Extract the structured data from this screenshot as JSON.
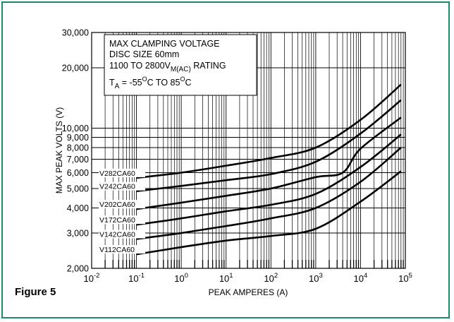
{
  "figure_label": "Figure 5",
  "chart_data": {
    "type": "line",
    "xlabel": "PEAK AMPERES (A)",
    "ylabel": "MAX PEAK VOLTS (V)",
    "xscale": "log",
    "yscale": "log",
    "xlim": [
      0.01,
      100000
    ],
    "ylim": [
      2000,
      30000
    ],
    "grid": true,
    "x_tick_labels": [
      {
        "base": "10",
        "exp": "-2",
        "value": 0.01
      },
      {
        "base": "10",
        "exp": "-1",
        "value": 0.1
      },
      {
        "base": "10",
        "exp": "0",
        "value": 1
      },
      {
        "base": "10",
        "exp": "1",
        "value": 10
      },
      {
        "base": "10",
        "exp": "2",
        "value": 100
      },
      {
        "base": "10",
        "exp": "3",
        "value": 1000
      },
      {
        "base": "10",
        "exp": "4",
        "value": 10000
      },
      {
        "base": "10",
        "exp": "5",
        "value": 100000
      }
    ],
    "y_tick_labels": [
      {
        "label": "2,000",
        "value": 2000
      },
      {
        "label": "3,000",
        "value": 3000
      },
      {
        "label": "4,000",
        "value": 4000
      },
      {
        "label": "5,000",
        "value": 5000
      },
      {
        "label": "6,000",
        "value": 6000
      },
      {
        "label": "7,000",
        "value": 7000
      },
      {
        "label": "8,000",
        "value": 8000
      },
      {
        "label": "9,000",
        "value": 9000
      },
      {
        "label": "10,000",
        "value": 10000
      },
      {
        "label": "20,000",
        "value": 20000
      },
      {
        "label": "30,000",
        "value": 30000
      }
    ],
    "annotation": {
      "line1": "MAX CLAMPING VOLTAGE",
      "line2": "DISC SIZE 60mm",
      "line3_prefix": "1100 TO 2800V",
      "line3_sub": "M(AC)",
      "line3_suffix": " RATING",
      "line4_t": "T",
      "line4_sub": "A",
      "line4_a": " = -55",
      "line4_deg1": "O",
      "line4_b": "C TO 85",
      "line4_deg2": "O",
      "line4_c": "C"
    },
    "series": [
      {
        "name": "V282CA60",
        "points": [
          [
            0.1,
            5650
          ],
          [
            1,
            6000
          ],
          [
            10,
            6500
          ],
          [
            100,
            7100
          ],
          [
            1000,
            8000
          ],
          [
            10000,
            11000
          ],
          [
            80000,
            16500
          ]
        ]
      },
      {
        "name": "V242CA60",
        "points": [
          [
            0.1,
            4850
          ],
          [
            1,
            5150
          ],
          [
            10,
            5500
          ],
          [
            100,
            5900
          ],
          [
            1000,
            6800
          ],
          [
            10000,
            9400
          ],
          [
            80000,
            13800
          ]
        ]
      },
      {
        "name": "V202CA60",
        "points": [
          [
            0.1,
            3950
          ],
          [
            1,
            4250
          ],
          [
            10,
            4600
          ],
          [
            100,
            5000
          ],
          [
            1000,
            5700
          ],
          [
            4000,
            6000
          ],
          [
            10000,
            7900
          ],
          [
            80000,
            11300
          ]
        ]
      },
      {
        "name": "V172CA60",
        "points": [
          [
            0.1,
            3300
          ],
          [
            1,
            3550
          ],
          [
            10,
            3850
          ],
          [
            100,
            4150
          ],
          [
            1000,
            4700
          ],
          [
            10000,
            6400
          ],
          [
            80000,
            9300
          ]
        ]
      },
      {
        "name": "V142CA60",
        "points": [
          [
            0.1,
            2800
          ],
          [
            1,
            3000
          ],
          [
            10,
            3250
          ],
          [
            100,
            3550
          ],
          [
            1000,
            4000
          ],
          [
            10000,
            5400
          ],
          [
            80000,
            8000
          ]
        ]
      },
      {
        "name": "V112CA60",
        "points": [
          [
            0.1,
            2350
          ],
          [
            1,
            2550
          ],
          [
            10,
            2750
          ],
          [
            100,
            2900
          ],
          [
            1000,
            3150
          ],
          [
            10000,
            4300
          ],
          [
            80000,
            6100
          ]
        ]
      }
    ]
  }
}
